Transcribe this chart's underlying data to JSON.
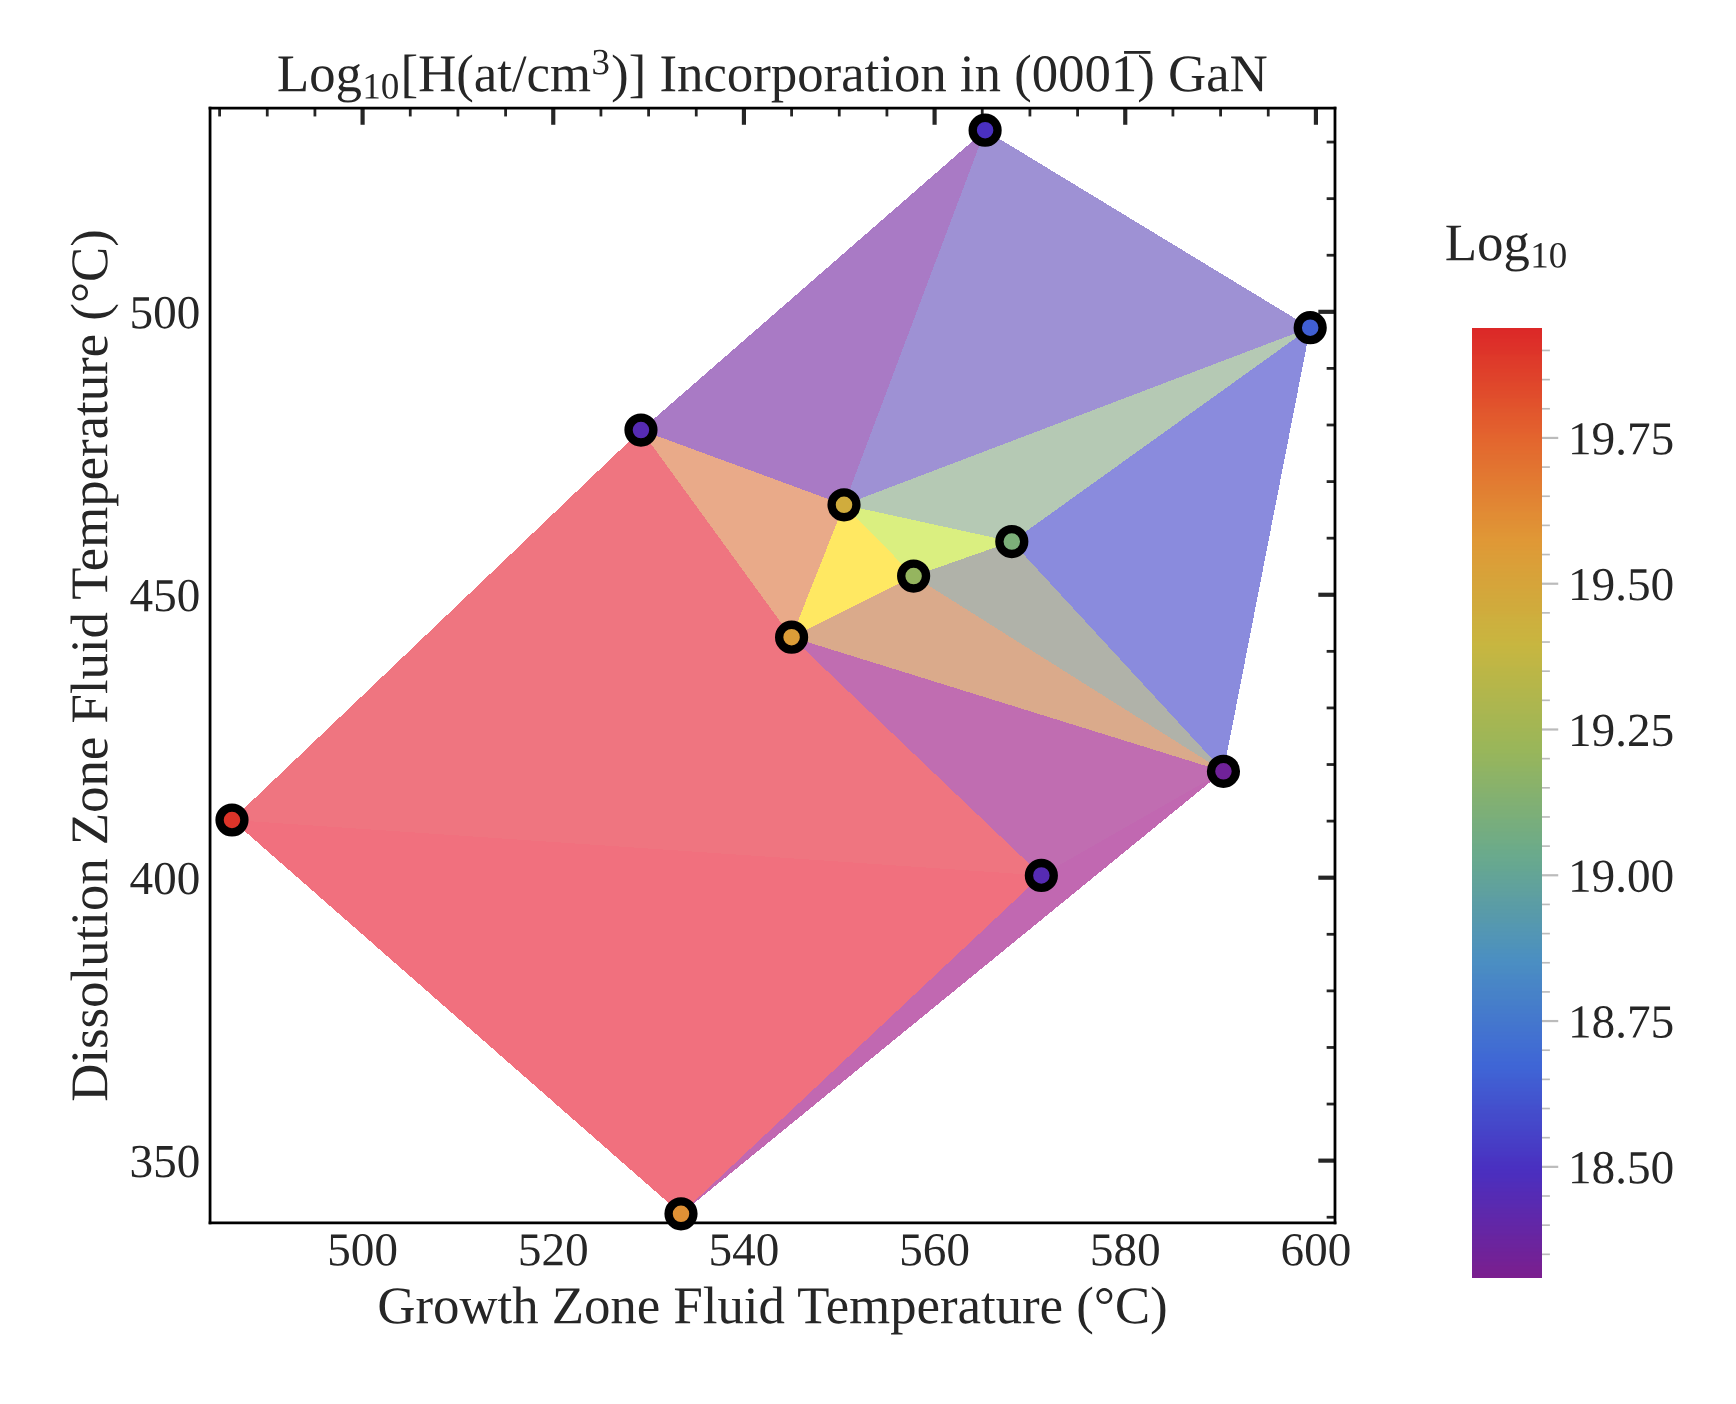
{
  "chart_data": {
    "type": "scatter",
    "title": "Log$_{10}$[H(at/cm$^{3}$)] Incorporation in (0001̅) GaN",
    "xlabel": "Growth Zone Fluid Temperature (°C)",
    "ylabel": "Dissolution Zone Fluid Temperature (°C)",
    "clabel": "Log$_{10}$",
    "x": [
      486.3,
      533.4,
      529.2,
      565.3,
      599.4,
      550.5,
      568.1,
      557.8,
      545.0,
      590.3,
      571.2
    ],
    "series": [
      {
        "color": "#000000",
        "values": [
          410.2,
          340.6,
          479.1,
          532.1,
          497.2,
          465.9,
          459.4,
          453.3,
          442.5,
          418.8,
          400.4
        ],
        "cvalues": [
          19.9,
          19.6,
          18.45,
          18.5,
          18.65,
          19.45,
          19.1,
          19.2,
          19.55,
          18.35,
          18.45
        ]
      }
    ],
    "clim": [
      18.31,
      19.94
    ],
    "cticks": [
      {
        "value": 18.5,
        "label": "18.50"
      },
      {
        "value": 18.75,
        "label": "18.75"
      },
      {
        "value": 19.0,
        "label": "19.00"
      },
      {
        "value": 19.25,
        "label": "19.25"
      },
      {
        "value": 19.5,
        "label": "19.50"
      },
      {
        "value": 19.75,
        "label": "19.75"
      }
    ],
    "xlim": [
      484,
      602
    ],
    "ylim": [
      339,
      536
    ],
    "xticks": [
      500,
      520,
      540,
      560,
      580,
      600
    ],
    "yticks": [
      350,
      400,
      450,
      500
    ],
    "marker": "circle",
    "grid": false
  }
}
